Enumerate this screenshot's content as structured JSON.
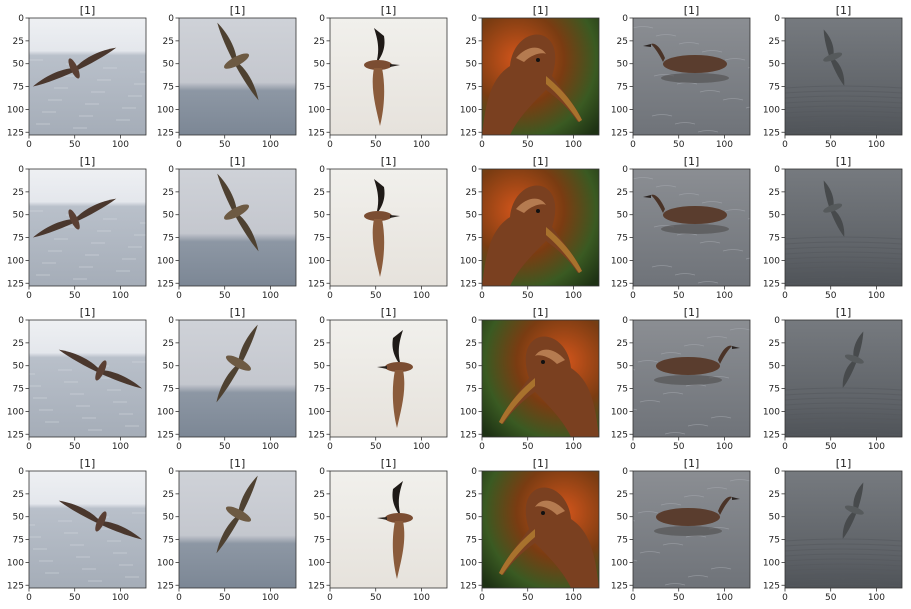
{
  "chart_data": {
    "type": "image-grid",
    "rows": 4,
    "cols": 6,
    "panel_title": "[1]",
    "xticks": [
      0,
      50,
      100
    ],
    "yticks": [
      0,
      25,
      50,
      75,
      100,
      125
    ],
    "xlim": [
      0,
      128
    ],
    "ylim": [
      128,
      0
    ],
    "panels": [
      {
        "title": "[1]",
        "scene": "sea-flight-diag"
      },
      {
        "title": "[1]",
        "scene": "sea-flight-cross"
      },
      {
        "title": "[1]",
        "scene": "white-flight-vertical"
      },
      {
        "title": "[1]",
        "scene": "closeup-head"
      },
      {
        "title": "[1]",
        "scene": "water-swimming"
      },
      {
        "title": "[1]",
        "scene": "gray-sea-flight"
      },
      {
        "title": "[1]",
        "scene": "sea-flight-diag"
      },
      {
        "title": "[1]",
        "scene": "sea-flight-cross"
      },
      {
        "title": "[1]",
        "scene": "white-flight-vertical"
      },
      {
        "title": "[1]",
        "scene": "closeup-head"
      },
      {
        "title": "[1]",
        "scene": "water-swimming"
      },
      {
        "title": "[1]",
        "scene": "gray-sea-flight"
      },
      {
        "title": "[1]",
        "scene": "sea-flight-diag-mirror"
      },
      {
        "title": "[1]",
        "scene": "sea-flight-cross-mirror"
      },
      {
        "title": "[1]",
        "scene": "white-flight-vertical-mirror"
      },
      {
        "title": "[1]",
        "scene": "closeup-head-mirror"
      },
      {
        "title": "[1]",
        "scene": "water-swimming-mirror"
      },
      {
        "title": "[1]",
        "scene": "gray-sea-flight-mirror"
      },
      {
        "title": "[1]",
        "scene": "sea-flight-diag-mirror"
      },
      {
        "title": "[1]",
        "scene": "sea-flight-cross-mirror"
      },
      {
        "title": "[1]",
        "scene": "white-flight-vertical-mirror"
      },
      {
        "title": "[1]",
        "scene": "closeup-head-mirror"
      },
      {
        "title": "[1]",
        "scene": "water-swimming-mirror"
      },
      {
        "title": "[1]",
        "scene": "gray-sea-flight-mirror"
      }
    ]
  }
}
